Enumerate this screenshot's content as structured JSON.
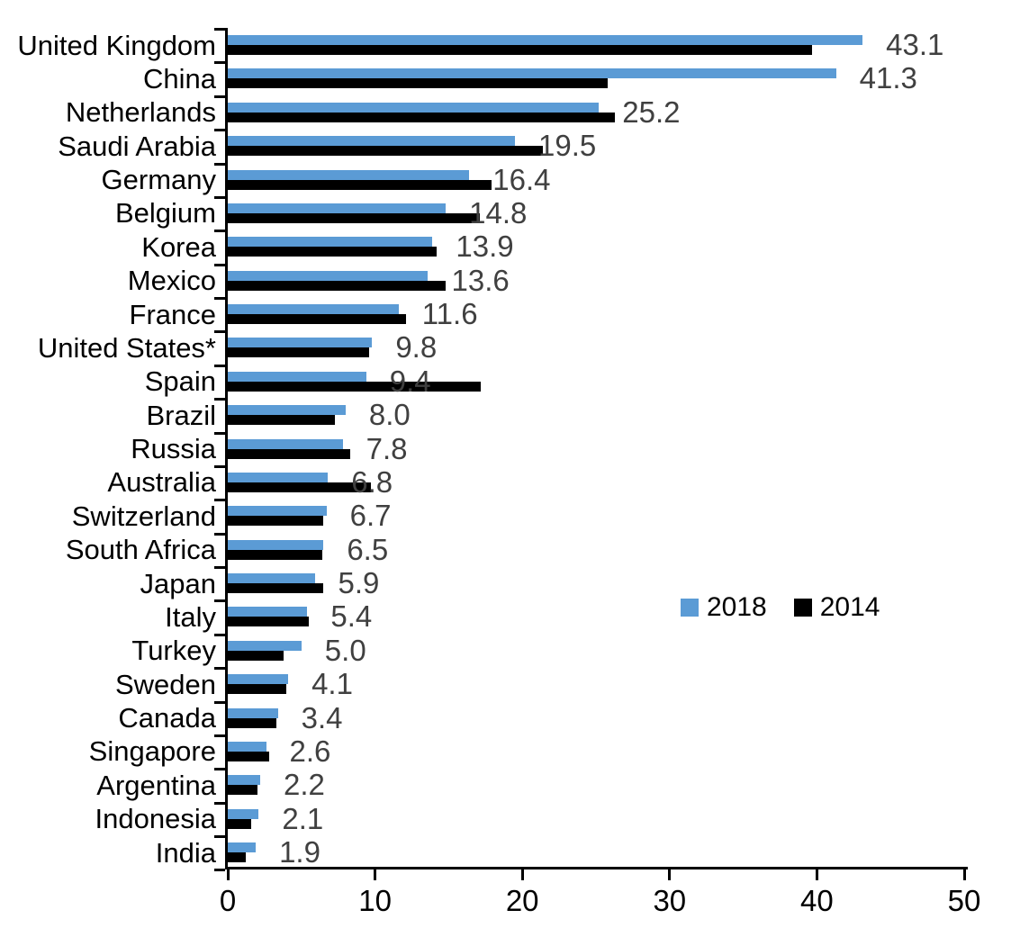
{
  "chart_data": {
    "type": "bar",
    "orientation": "horizontal",
    "title": "",
    "xlabel": "",
    "ylabel": "",
    "xlim": [
      0,
      50
    ],
    "x_ticks": [
      0,
      10,
      20,
      30,
      40,
      50
    ],
    "grid": false,
    "legend_position": "center-right",
    "value_label_color": "#404040",
    "categories": [
      "United Kingdom",
      "China",
      "Netherlands",
      "Saudi Arabia",
      "Germany",
      "Belgium",
      "Korea",
      "Mexico",
      "France",
      "United States*",
      "Spain",
      "Brazil",
      "Russia",
      "Australia",
      "Switzerland",
      "South Africa",
      "Japan",
      "Italy",
      "Turkey",
      "Sweden",
      "Canada",
      "Singapore",
      "Argentina",
      "Indonesia",
      "India"
    ],
    "series": [
      {
        "name": "2018",
        "color": "#5B9BD5",
        "values": [
          43.1,
          41.3,
          25.2,
          19.5,
          16.4,
          14.8,
          13.9,
          13.6,
          11.6,
          9.8,
          9.4,
          8.0,
          7.8,
          6.8,
          6.7,
          6.5,
          5.9,
          5.4,
          5.0,
          4.1,
          3.4,
          2.6,
          2.2,
          2.1,
          1.9
        ],
        "data_labels": [
          "43.1",
          "41.3",
          "25.2",
          "19.5",
          "16.4",
          "14.8",
          "13.9",
          "13.6",
          "11.6",
          "9.8",
          "9.4",
          "8.0",
          "7.8",
          "6.8",
          "6.7",
          "6.5",
          "5.9",
          "5.4",
          "5.0",
          "4.1",
          "3.4",
          "2.6",
          "2.2",
          "2.1",
          "1.9"
        ]
      },
      {
        "name": "2014",
        "color": "#000000",
        "values": [
          39.7,
          25.8,
          26.3,
          21.4,
          17.9,
          17.1,
          14.2,
          14.8,
          12.1,
          9.6,
          17.2,
          7.3,
          8.3,
          9.7,
          6.5,
          6.4,
          6.5,
          5.5,
          3.8,
          4.0,
          3.3,
          2.8,
          2.0,
          1.6,
          1.2
        ]
      }
    ],
    "x_tick_labels": [
      "0",
      "10",
      "20",
      "30",
      "40",
      "50"
    ]
  },
  "legend": {
    "items": [
      {
        "label": "2018",
        "color": "#5B9BD5"
      },
      {
        "label": "2014",
        "color": "#000000"
      }
    ]
  }
}
